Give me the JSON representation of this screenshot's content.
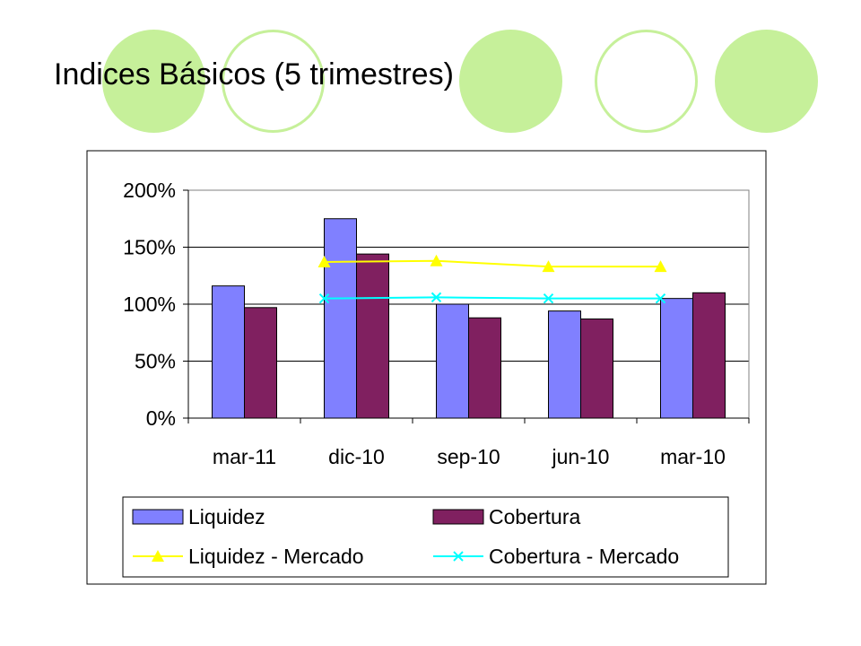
{
  "slide": {
    "title": "Indices Básicos (5 trimestres)"
  },
  "decor": {
    "circle_color": "#c6f09a",
    "circle_icon": "circle-icon"
  },
  "chart_data": {
    "type": "bar",
    "title": "",
    "xlabel": "",
    "ylabel": "",
    "categories": [
      "mar-11",
      "dic-10",
      "sep-10",
      "jun-10",
      "mar-10"
    ],
    "y_ticks": [
      "0%",
      "50%",
      "100%",
      "150%",
      "200%"
    ],
    "ylim": [
      0,
      200
    ],
    "y_unit": "%",
    "grid": true,
    "legend_position": "bottom",
    "series": [
      {
        "name": "Liquidez",
        "kind": "bar",
        "color": "#8080ff",
        "values": [
          116,
          175,
          100,
          94,
          105
        ]
      },
      {
        "name": "Cobertura",
        "kind": "bar",
        "color": "#802060",
        "values": [
          97,
          144,
          88,
          87,
          110
        ]
      },
      {
        "name": "Liquidez - Mercado",
        "kind": "line",
        "marker": "triangle",
        "color": "#ffff00",
        "values": [
          null,
          137,
          138,
          133,
          133
        ]
      },
      {
        "name": "Cobertura - Mercado",
        "kind": "line",
        "marker": "x",
        "color": "#00ffff",
        "values": [
          null,
          105,
          106,
          105,
          105
        ]
      }
    ]
  }
}
